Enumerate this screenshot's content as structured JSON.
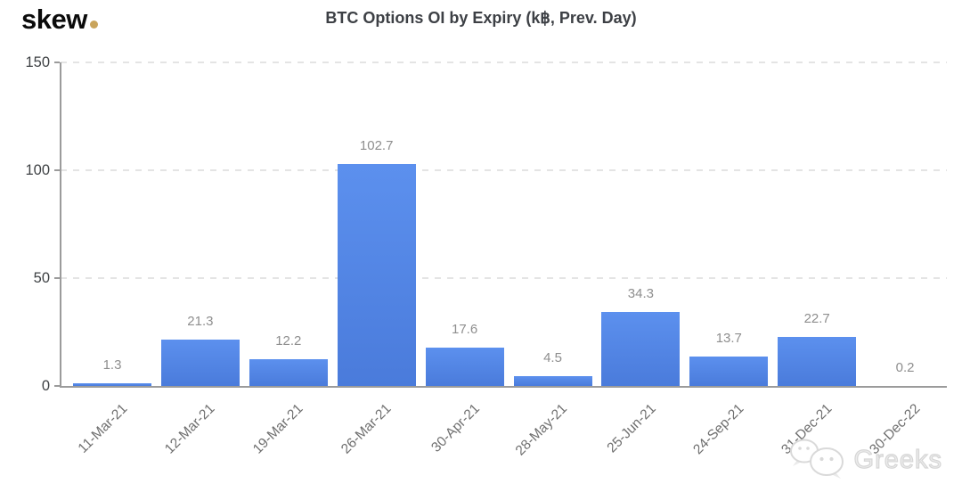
{
  "logo": {
    "text": "skew",
    "dot_color": "#c9a45c"
  },
  "title": "BTC Options OI by Expiry (k฿, Prev. Day)",
  "watermark": {
    "text": "Greeks",
    "icon": "wechat-icon"
  },
  "colors": {
    "bar_top": "#5c90ee",
    "bar_bottom": "#4a7bdb",
    "axis": "#9b9b9b",
    "gridline": "#e4e4e4",
    "value_label": "#8e8e8e",
    "x_label": "#6f6f6f",
    "y_label": "#3f4245",
    "title": "#3d4045",
    "logo_dot": "#c9a45c"
  },
  "chart_data": {
    "type": "bar",
    "title": "BTC Options OI by Expiry (k฿, Prev. Day)",
    "categories": [
      "11-Mar-21",
      "12-Mar-21",
      "19-Mar-21",
      "26-Mar-21",
      "30-Apr-21",
      "28-May-21",
      "25-Jun-21",
      "24-Sep-21",
      "31-Dec-21",
      "30-Dec-22"
    ],
    "values": [
      1.3,
      21.3,
      12.2,
      102.7,
      17.6,
      4.5,
      34.3,
      13.7,
      22.7,
      0.2
    ],
    "value_labels": [
      "1.3",
      "21.3",
      "12.2",
      "102.7",
      "17.6",
      "4.5",
      "34.3",
      "13.7",
      "22.7",
      "0.2"
    ],
    "xlabel": "",
    "ylabel": "",
    "ylim": [
      0,
      150
    ],
    "yticks": [
      0,
      50,
      100,
      150
    ],
    "grid": "horizontal dashed lines at 50, 100, 150",
    "legend": "none",
    "bar_color": "#5285e5"
  }
}
